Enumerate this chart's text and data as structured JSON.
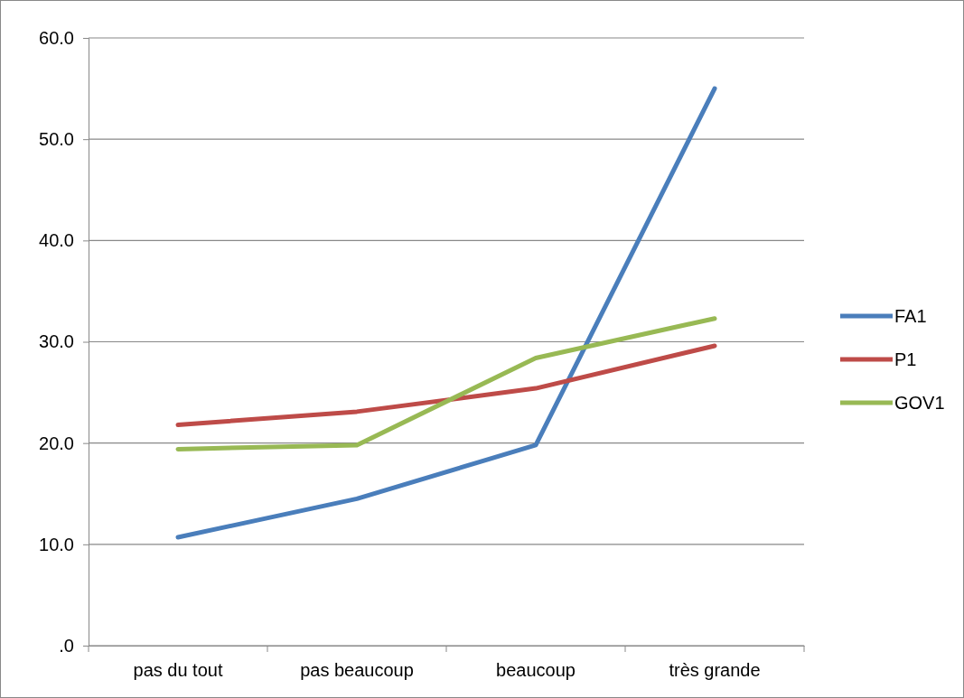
{
  "chart_data": {
    "type": "line",
    "categories": [
      "pas du tout",
      "pas beaucoup",
      "beaucoup",
      "très grande"
    ],
    "series": [
      {
        "name": "FA1",
        "color": "#4a7ebb",
        "values": [
          10.7,
          14.5,
          19.8,
          55.0
        ]
      },
      {
        "name": "P1",
        "color": "#be4b48",
        "values": [
          21.8,
          23.1,
          25.4,
          29.6
        ]
      },
      {
        "name": "GOV1",
        "color": "#98b954",
        "values": [
          19.4,
          19.8,
          28.4,
          32.3
        ]
      }
    ],
    "ylim": [
      0,
      60
    ],
    "yticks": [
      {
        "value": 0,
        "label": ".0"
      },
      {
        "value": 10,
        "label": "10.0"
      },
      {
        "value": 20,
        "label": "20.0"
      },
      {
        "value": 30,
        "label": "30.0"
      },
      {
        "value": 40,
        "label": "40.0"
      },
      {
        "value": 50,
        "label": "50.0"
      },
      {
        "value": 60,
        "label": "60.0"
      }
    ],
    "grid": "y",
    "legend": "right",
    "marker": "none",
    "line_style": "solid"
  }
}
